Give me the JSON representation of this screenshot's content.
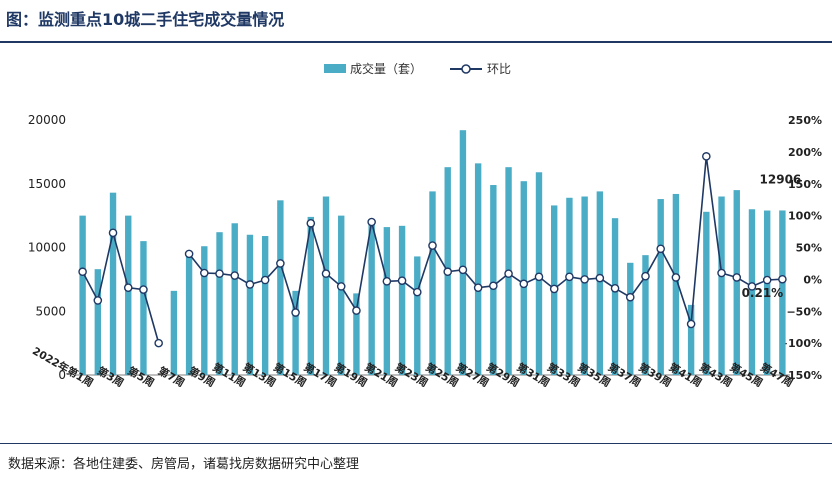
{
  "title": "图：监测重点10城二手住宅成交量情况",
  "source": "数据来源：各地住建委、房管局，诸葛找房数据研究中心整理",
  "colors": {
    "bar": "#4bacc6",
    "line": "#1f3864",
    "axis": "#7f7f7f",
    "title": "#1f3864"
  },
  "chart_data": {
    "type": "bar",
    "legend": {
      "position": "top-center",
      "bar_label": "成交量（套）",
      "line_label": "环比"
    },
    "x_tick_labels": [
      "2022年第1周",
      "第3周",
      "第5周",
      "第7周",
      "第9周",
      "第11周",
      "第13周",
      "第15周",
      "第17周",
      "第19周",
      "第21周",
      "第23周",
      "第25周",
      "第27周",
      "第29周",
      "第31周",
      "第33周",
      "第35周",
      "第37周",
      "第39周",
      "第41周",
      "第43周",
      "第45周",
      "第47周"
    ],
    "x_tick_every": 2,
    "y_left": {
      "min": 0,
      "max": 20000,
      "ticks": [
        0,
        5000,
        10000,
        15000,
        20000
      ]
    },
    "y_right": {
      "min": -150,
      "max": 250,
      "unit": "%",
      "ticks": [
        -150,
        -100,
        -50,
        0,
        50,
        100,
        150,
        200,
        250
      ]
    },
    "weeks": [
      1,
      2,
      3,
      4,
      5,
      6,
      7,
      8,
      9,
      10,
      11,
      12,
      13,
      14,
      15,
      16,
      17,
      18,
      19,
      20,
      21,
      22,
      23,
      24,
      25,
      26,
      27,
      28,
      29,
      30,
      31,
      32,
      33,
      34,
      35,
      36,
      37,
      38,
      39,
      40,
      41,
      42,
      43,
      44,
      45,
      46,
      47
    ],
    "series": [
      {
        "name": "成交量（套）",
        "kind": "bar",
        "values": [
          12500,
          8300,
          14300,
          12500,
          10500,
          0,
          6600,
          9300,
          10100,
          11200,
          11900,
          11000,
          10900,
          13700,
          6600,
          12400,
          14000,
          12500,
          6400,
          11800,
          11600,
          11700,
          9300,
          14400,
          16300,
          19200,
          16600,
          14900,
          16300,
          15200,
          15900,
          13300,
          13900,
          14000,
          14400,
          12300,
          8800,
          9400,
          13800,
          14200,
          5500,
          12800,
          14000,
          14500,
          13000,
          12900,
          12906
        ]
      },
      {
        "name": "环比",
        "kind": "line",
        "unit": "%",
        "values": [
          12,
          -33,
          73,
          -13,
          -16,
          -100,
          null,
          40,
          10,
          9,
          6,
          -8,
          -1,
          25,
          -52,
          88,
          9,
          -11,
          -49,
          90,
          -3,
          -2,
          -20,
          53,
          12,
          15,
          -13,
          -10,
          9,
          -7,
          4,
          -15,
          4,
          0,
          2,
          -14,
          -28,
          5,
          48,
          3,
          -70,
          193,
          10,
          3,
          -11,
          -1,
          0.21
        ]
      }
    ],
    "annotations": [
      {
        "week": 47,
        "bar_label": "12906",
        "line_label": "0.21%"
      }
    ]
  }
}
